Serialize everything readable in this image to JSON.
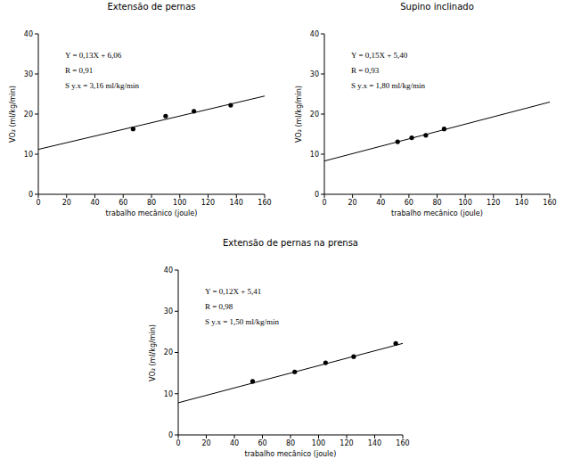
{
  "chart_data": [
    {
      "type": "scatter",
      "title": "Extensão de pernas",
      "x_label": "trabalho mecânico (joule)",
      "y_label": "VO₂ (ml/kg/min)",
      "annotations": [
        "Y = 0,13X + 6,06",
        "R = 0,91",
        "S y.x = 3,16 ml/kg/min"
      ],
      "xlim": [
        0,
        160
      ],
      "xticks": [
        0,
        20,
        40,
        60,
        80,
        100,
        120,
        140,
        160
      ],
      "ylim": [
        0,
        40
      ],
      "yticks": [
        0,
        10,
        20,
        30,
        40
      ],
      "series": [
        {
          "type": "scatter",
          "marker": "circle",
          "color": "#000000",
          "x": [
            67,
            90,
            110,
            136
          ],
          "values": [
            16.3,
            19.5,
            20.7,
            22.2
          ]
        },
        {
          "type": "line",
          "color": "#000000",
          "x": [
            0,
            160
          ],
          "values": [
            11.2,
            24.5
          ]
        }
      ]
    },
    {
      "type": "scatter",
      "title": "Supino inclinado",
      "x_label": "trabalho mecânico (joule)",
      "y_label": "VO₂ (ml/kg/min)",
      "annotations": [
        "Y = 0,15X + 5,40",
        "R = 0,93",
        "S y.x = 1,80 ml/kg/min"
      ],
      "xlim": [
        0,
        160
      ],
      "xticks": [
        0,
        20,
        40,
        60,
        80,
        100,
        120,
        140,
        160
      ],
      "ylim": [
        0,
        40
      ],
      "yticks": [
        0,
        10,
        20,
        30,
        40
      ],
      "series": [
        {
          "type": "scatter",
          "marker": "circle",
          "color": "#000000",
          "x": [
            52,
            62,
            72,
            85
          ],
          "values": [
            13.1,
            14.1,
            14.7,
            16.3
          ]
        },
        {
          "type": "line",
          "color": "#000000",
          "x": [
            0,
            160
          ],
          "values": [
            8.3,
            23
          ]
        }
      ]
    },
    {
      "type": "scatter",
      "title": "Extensão de pernas na prensa",
      "x_label": "trabalho mecânico (joule)",
      "y_label": "VO₂ (ml/kg/min)",
      "annotations": [
        "Y = 0,12X + 5,41",
        "R = 0,98",
        "S y.x = 1,50 ml/kg/min"
      ],
      "xlim": [
        0,
        160
      ],
      "xticks": [
        0,
        20,
        40,
        60,
        80,
        100,
        120,
        140,
        160
      ],
      "ylim": [
        0,
        40
      ],
      "yticks": [
        0,
        10,
        20,
        30,
        40
      ],
      "series": [
        {
          "type": "scatter",
          "marker": "circle",
          "color": "#000000",
          "x": [
            53,
            83,
            105,
            125,
            155
          ],
          "values": [
            13,
            15.3,
            17.5,
            19,
            22.2
          ]
        },
        {
          "type": "line",
          "color": "#000000",
          "x": [
            0,
            160
          ],
          "values": [
            7.8,
            22.2
          ]
        }
      ]
    }
  ]
}
